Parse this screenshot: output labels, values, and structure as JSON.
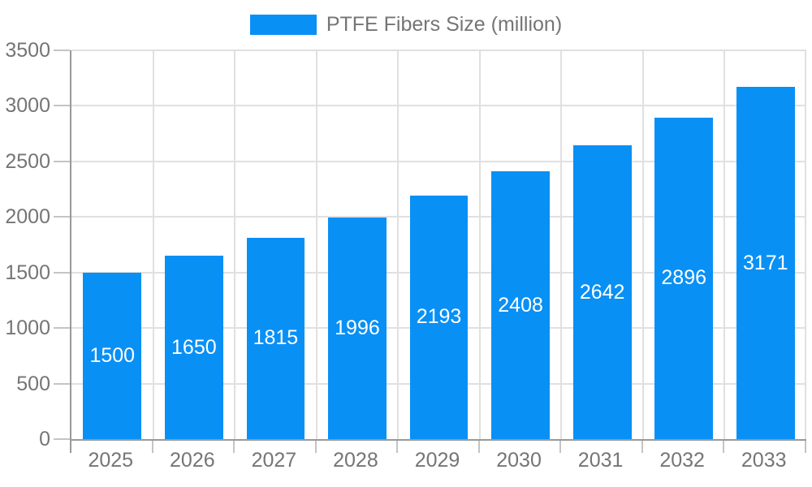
{
  "chart_data": {
    "type": "bar",
    "title": "",
    "legend_label": "PTFE Fibers Size (million)",
    "legend_position": "top",
    "categories": [
      "2025",
      "2026",
      "2027",
      "2028",
      "2029",
      "2030",
      "2031",
      "2032",
      "2033"
    ],
    "series": [
      {
        "name": "PTFE Fibers Size (million)",
        "values": [
          1500,
          1650,
          1815,
          1996,
          2193,
          2408,
          2642,
          2896,
          3171
        ]
      }
    ],
    "value_labels": {
      "position": "inside-center",
      "color": "#ffffff"
    },
    "xlabel": "",
    "ylabel": "",
    "ylim": [
      0,
      3500
    ],
    "yticks": [
      0,
      500,
      1000,
      1500,
      2000,
      2500,
      3000,
      3500
    ],
    "grid": true,
    "colors": {
      "bar": "#0990f5",
      "grid": "#e0e0e0",
      "axis": "#999999",
      "tick_label": "#757575",
      "legend_text": "#757575",
      "background": "#ffffff"
    }
  }
}
